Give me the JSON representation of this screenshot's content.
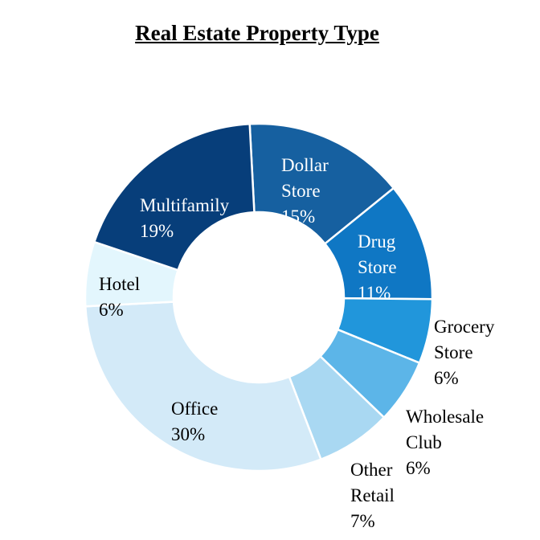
{
  "chart_data": {
    "type": "pie",
    "title": "Real Estate Property Type",
    "slices": [
      {
        "name": "Dollar Store",
        "label_lines": [
          "Dollar",
          "Store"
        ],
        "pct_label": "15%",
        "value": 15,
        "color": "#1660a0",
        "text_color": "#ffffff"
      },
      {
        "name": "Drug Store",
        "label_lines": [
          "Drug",
          "Store"
        ],
        "pct_label": "11%",
        "value": 11,
        "color": "#0f77c4",
        "text_color": "#ffffff"
      },
      {
        "name": "Grocery Store",
        "label_lines": [
          "Grocery",
          "Store"
        ],
        "pct_label": "6%",
        "value": 6,
        "color": "#2196db",
        "text_color": "#000000"
      },
      {
        "name": "Wholesale Club",
        "label_lines": [
          "Wholesale",
          "Club"
        ],
        "pct_label": "6%",
        "value": 6,
        "color": "#5cb5e8",
        "text_color": "#000000"
      },
      {
        "name": "Other Retail",
        "label_lines": [
          "Other",
          "Retail"
        ],
        "pct_label": "7%",
        "value": 7,
        "color": "#a9d8f2",
        "text_color": "#000000"
      },
      {
        "name": "Office",
        "label_lines": [
          "Office"
        ],
        "pct_label": "30%",
        "value": 30,
        "color": "#d3eaf8",
        "text_color": "#000000"
      },
      {
        "name": "Hotel",
        "label_lines": [
          "Hotel"
        ],
        "pct_label": "6%",
        "value": 6,
        "color": "#e3f6fd",
        "text_color": "#000000"
      },
      {
        "name": "Multifamily",
        "label_lines": [
          "Multifamily"
        ],
        "pct_label": "19%",
        "value": 19,
        "color": "#073e7a",
        "text_color": "#ffffff"
      }
    ]
  }
}
